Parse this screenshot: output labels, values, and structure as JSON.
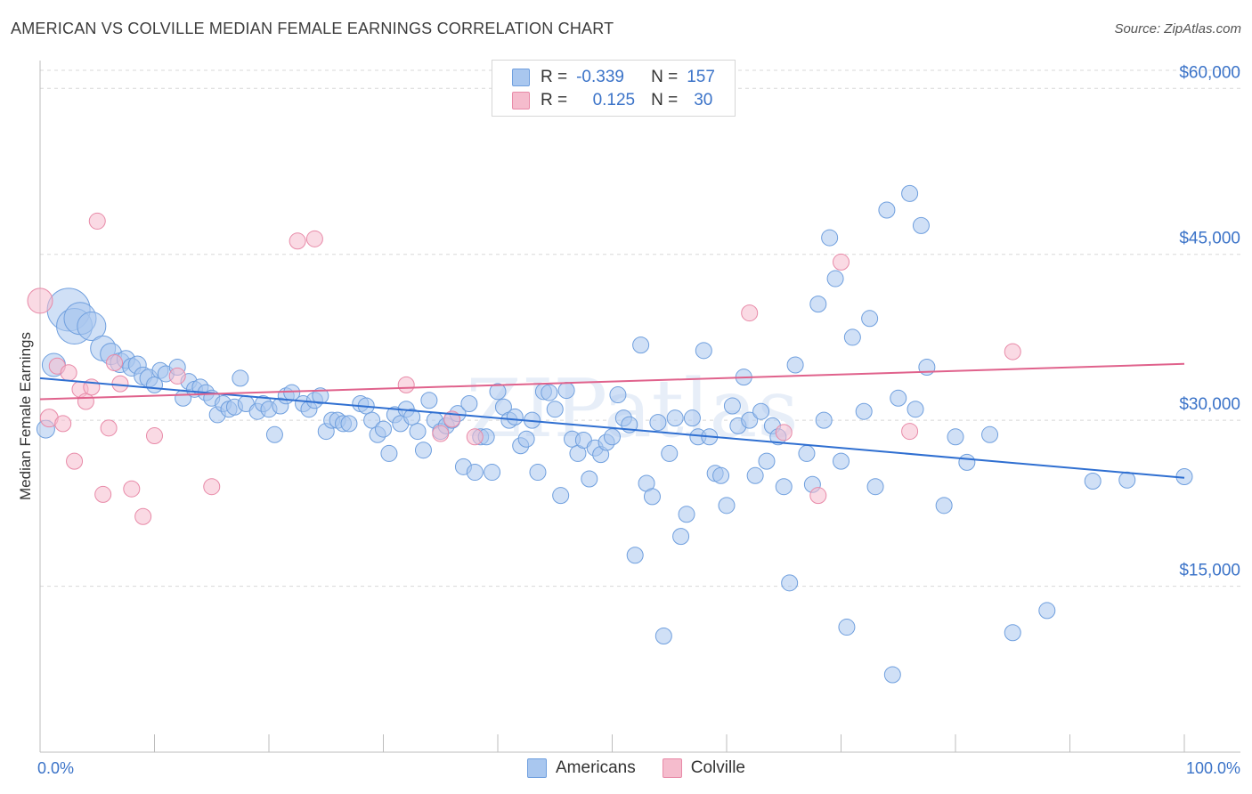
{
  "title": "AMERICAN VS COLVILLE MEDIAN FEMALE EARNINGS CORRELATION CHART",
  "source": "Source: ZipAtlas.com",
  "legend": {
    "rows": [
      {
        "r_label": "R =",
        "r_value": "-0.339",
        "n_label": "N =",
        "n_value": "157"
      },
      {
        "r_label": "R =",
        "r_value": "0.125",
        "n_label": "N =",
        "n_value": "30"
      }
    ]
  },
  "bottom_legend": [
    "Americans",
    "Colville"
  ],
  "colors": {
    "blue_fill": "#a9c7ef",
    "blue_stroke": "#6f9fde",
    "blue_line": "#2f6fd1",
    "pink_fill": "#f5bccd",
    "pink_stroke": "#e88aa8",
    "pink_line": "#e0628c",
    "grid": "#d8d8d8",
    "axis_text": "#3b73c8"
  },
  "chart_data": {
    "type": "scatter",
    "title": "AMERICAN VS COLVILLE MEDIAN FEMALE EARNINGS CORRELATION CHART",
    "xlabel": "",
    "ylabel": "Median Female Earnings",
    "xlim": [
      0,
      100
    ],
    "ylim": [
      0,
      63000
    ],
    "x_tick_labels": [
      "0.0%",
      "100.0%"
    ],
    "y_ticks": [
      15000,
      30000,
      45000,
      60000
    ],
    "y_tick_labels": [
      "$15,000",
      "$30,000",
      "$45,000",
      "$60,000"
    ],
    "grid": "horizontal dashed",
    "legend_position": "top-center",
    "series": [
      {
        "name": "Americans",
        "trend": [
          [
            0,
            33800
          ],
          [
            100,
            24800
          ]
        ],
        "points": [
          [
            0.5,
            29200,
            10
          ],
          [
            1.2,
            35000,
            13
          ],
          [
            2.5,
            40000,
            24
          ],
          [
            3.0,
            38500,
            20
          ],
          [
            3.5,
            39200,
            18
          ],
          [
            4.5,
            38500,
            16
          ],
          [
            5.5,
            36500,
            14
          ],
          [
            6.2,
            36000,
            12
          ],
          [
            7.0,
            35200,
            11
          ],
          [
            7.5,
            35500,
            10
          ],
          [
            8.0,
            34800,
            10
          ],
          [
            8.5,
            35000,
            10
          ],
          [
            9.0,
            34000,
            10
          ],
          [
            9.5,
            33800,
            10
          ],
          [
            10.0,
            33200,
            9
          ],
          [
            10.5,
            34500,
            9
          ],
          [
            11.0,
            34200,
            9
          ],
          [
            12.0,
            34800,
            9
          ],
          [
            12.5,
            32000,
            9
          ],
          [
            13.0,
            33500,
            9
          ],
          [
            13.5,
            32800,
            9
          ],
          [
            14.0,
            33000,
            9
          ],
          [
            14.5,
            32500,
            9
          ],
          [
            15.0,
            32000,
            9
          ],
          [
            15.5,
            30500,
            9
          ],
          [
            16.0,
            31500,
            9
          ],
          [
            16.5,
            31000,
            9
          ],
          [
            17.0,
            31200,
            9
          ],
          [
            17.5,
            33800,
            9
          ],
          [
            18.0,
            31500,
            9
          ],
          [
            19.0,
            30800,
            9
          ],
          [
            19.5,
            31500,
            9
          ],
          [
            20.0,
            31000,
            9
          ],
          [
            20.5,
            28700,
            9
          ],
          [
            21.0,
            31300,
            9
          ],
          [
            21.5,
            32200,
            9
          ],
          [
            22.0,
            32500,
            9
          ],
          [
            23.0,
            31500,
            9
          ],
          [
            23.5,
            31000,
            9
          ],
          [
            24.0,
            31800,
            9
          ],
          [
            24.5,
            32200,
            9
          ],
          [
            25.0,
            29000,
            9
          ],
          [
            25.5,
            30000,
            9
          ],
          [
            26.0,
            30000,
            9
          ],
          [
            26.5,
            29700,
            9
          ],
          [
            27.0,
            29700,
            9
          ],
          [
            28.0,
            31500,
            9
          ],
          [
            28.5,
            31300,
            9
          ],
          [
            29.0,
            30000,
            9
          ],
          [
            29.5,
            28700,
            9
          ],
          [
            30.0,
            29200,
            9
          ],
          [
            30.5,
            27000,
            9
          ],
          [
            31.0,
            30500,
            9
          ],
          [
            31.5,
            29700,
            9
          ],
          [
            32.0,
            31000,
            9
          ],
          [
            32.5,
            30300,
            9
          ],
          [
            33.0,
            29000,
            9
          ],
          [
            33.5,
            27300,
            9
          ],
          [
            34.0,
            31800,
            9
          ],
          [
            34.5,
            30000,
            9
          ],
          [
            35.0,
            29000,
            9
          ],
          [
            35.5,
            29500,
            9
          ],
          [
            36.0,
            30000,
            9
          ],
          [
            36.5,
            30600,
            9
          ],
          [
            37.0,
            25800,
            9
          ],
          [
            37.5,
            31500,
            9
          ],
          [
            38.0,
            25300,
            9
          ],
          [
            38.5,
            28500,
            9
          ],
          [
            39.0,
            28500,
            9
          ],
          [
            39.5,
            25300,
            9
          ],
          [
            40.0,
            32600,
            9
          ],
          [
            40.5,
            31200,
            9
          ],
          [
            41.0,
            30000,
            9
          ],
          [
            41.5,
            30300,
            9
          ],
          [
            42.0,
            27700,
            9
          ],
          [
            42.5,
            28300,
            9
          ],
          [
            43.0,
            30000,
            9
          ],
          [
            43.5,
            25300,
            9
          ],
          [
            44.0,
            32600,
            9
          ],
          [
            44.5,
            32500,
            9
          ],
          [
            45.0,
            31000,
            9
          ],
          [
            45.5,
            23200,
            9
          ],
          [
            46.0,
            32700,
            9
          ],
          [
            46.5,
            28300,
            9
          ],
          [
            47.0,
            27000,
            9
          ],
          [
            47.5,
            28200,
            9
          ],
          [
            48.0,
            24700,
            9
          ],
          [
            48.5,
            27500,
            9
          ],
          [
            49.0,
            26900,
            9
          ],
          [
            49.5,
            28000,
            9
          ],
          [
            50.0,
            28500,
            9
          ],
          [
            50.5,
            32300,
            9
          ],
          [
            51.0,
            30200,
            9
          ],
          [
            51.5,
            29600,
            9
          ],
          [
            52.0,
            17800,
            9
          ],
          [
            52.5,
            36800,
            9
          ],
          [
            53.0,
            24300,
            9
          ],
          [
            53.5,
            23100,
            9
          ],
          [
            54.0,
            29800,
            9
          ],
          [
            54.5,
            10500,
            9
          ],
          [
            55.0,
            27000,
            9
          ],
          [
            55.5,
            30200,
            9
          ],
          [
            56.0,
            19500,
            9
          ],
          [
            56.5,
            21500,
            9
          ],
          [
            57.0,
            30200,
            9
          ],
          [
            57.5,
            28500,
            9
          ],
          [
            58.0,
            36300,
            9
          ],
          [
            58.5,
            28500,
            9
          ],
          [
            59.0,
            25200,
            9
          ],
          [
            59.5,
            25000,
            9
          ],
          [
            60.0,
            22300,
            9
          ],
          [
            60.5,
            31300,
            9
          ],
          [
            61.0,
            29500,
            9
          ],
          [
            61.5,
            33900,
            9
          ],
          [
            62.0,
            30000,
            9
          ],
          [
            62.5,
            25000,
            9
          ],
          [
            63.0,
            30800,
            9
          ],
          [
            63.5,
            26300,
            9
          ],
          [
            64.0,
            29500,
            9
          ],
          [
            64.5,
            28500,
            9
          ],
          [
            65.0,
            24000,
            9
          ],
          [
            65.5,
            15300,
            9
          ],
          [
            66.0,
            35000,
            9
          ],
          [
            67.0,
            27000,
            9
          ],
          [
            67.5,
            24200,
            9
          ],
          [
            68.0,
            40500,
            9
          ],
          [
            68.5,
            30000,
            9
          ],
          [
            69.0,
            46500,
            9
          ],
          [
            69.5,
            42800,
            9
          ],
          [
            70.0,
            26300,
            9
          ],
          [
            70.5,
            11300,
            9
          ],
          [
            71.0,
            37500,
            9
          ],
          [
            72.0,
            30800,
            9
          ],
          [
            72.5,
            39200,
            9
          ],
          [
            73.0,
            24000,
            9
          ],
          [
            74.0,
            49000,
            9
          ],
          [
            74.5,
            7000,
            9
          ],
          [
            75.0,
            32000,
            9
          ],
          [
            76.0,
            50500,
            9
          ],
          [
            76.5,
            31000,
            9
          ],
          [
            77.0,
            47600,
            9
          ],
          [
            77.5,
            34800,
            9
          ],
          [
            79.0,
            22300,
            9
          ],
          [
            80.0,
            28500,
            9
          ],
          [
            81.0,
            26200,
            9
          ],
          [
            83.0,
            28700,
            9
          ],
          [
            85.0,
            10800,
            9
          ],
          [
            88.0,
            12800,
            9
          ],
          [
            92.0,
            24500,
            9
          ],
          [
            95.0,
            24600,
            9
          ],
          [
            100.0,
            24900,
            9
          ]
        ]
      },
      {
        "name": "Colville",
        "trend": [
          [
            0,
            31900
          ],
          [
            100,
            35100
          ]
        ],
        "points": [
          [
            0.0,
            40800,
            14
          ],
          [
            0.8,
            30200,
            10
          ],
          [
            1.5,
            34900,
            9
          ],
          [
            2.0,
            29700,
            9
          ],
          [
            2.5,
            34300,
            9
          ],
          [
            3.0,
            26300,
            9
          ],
          [
            3.5,
            32800,
            9
          ],
          [
            4.0,
            31700,
            9
          ],
          [
            4.5,
            33000,
            9
          ],
          [
            5.0,
            48000,
            9
          ],
          [
            5.5,
            23300,
            9
          ],
          [
            6.0,
            29300,
            9
          ],
          [
            6.5,
            35200,
            9
          ],
          [
            7.0,
            33300,
            9
          ],
          [
            8.0,
            23800,
            9
          ],
          [
            9.0,
            21300,
            9
          ],
          [
            10.0,
            28600,
            9
          ],
          [
            12.0,
            34000,
            9
          ],
          [
            15.0,
            24000,
            9
          ],
          [
            22.5,
            46200,
            9
          ],
          [
            24.0,
            46400,
            9
          ],
          [
            32.0,
            33200,
            9
          ],
          [
            35.0,
            28800,
            9
          ],
          [
            36.0,
            30100,
            9
          ],
          [
            38.0,
            28500,
            9
          ],
          [
            62.0,
            39700,
            9
          ],
          [
            65.0,
            28900,
            9
          ],
          [
            68.0,
            23200,
            9
          ],
          [
            70.0,
            44300,
            9
          ],
          [
            76.0,
            29000,
            9
          ],
          [
            85.0,
            36200,
            9
          ]
        ]
      }
    ]
  }
}
